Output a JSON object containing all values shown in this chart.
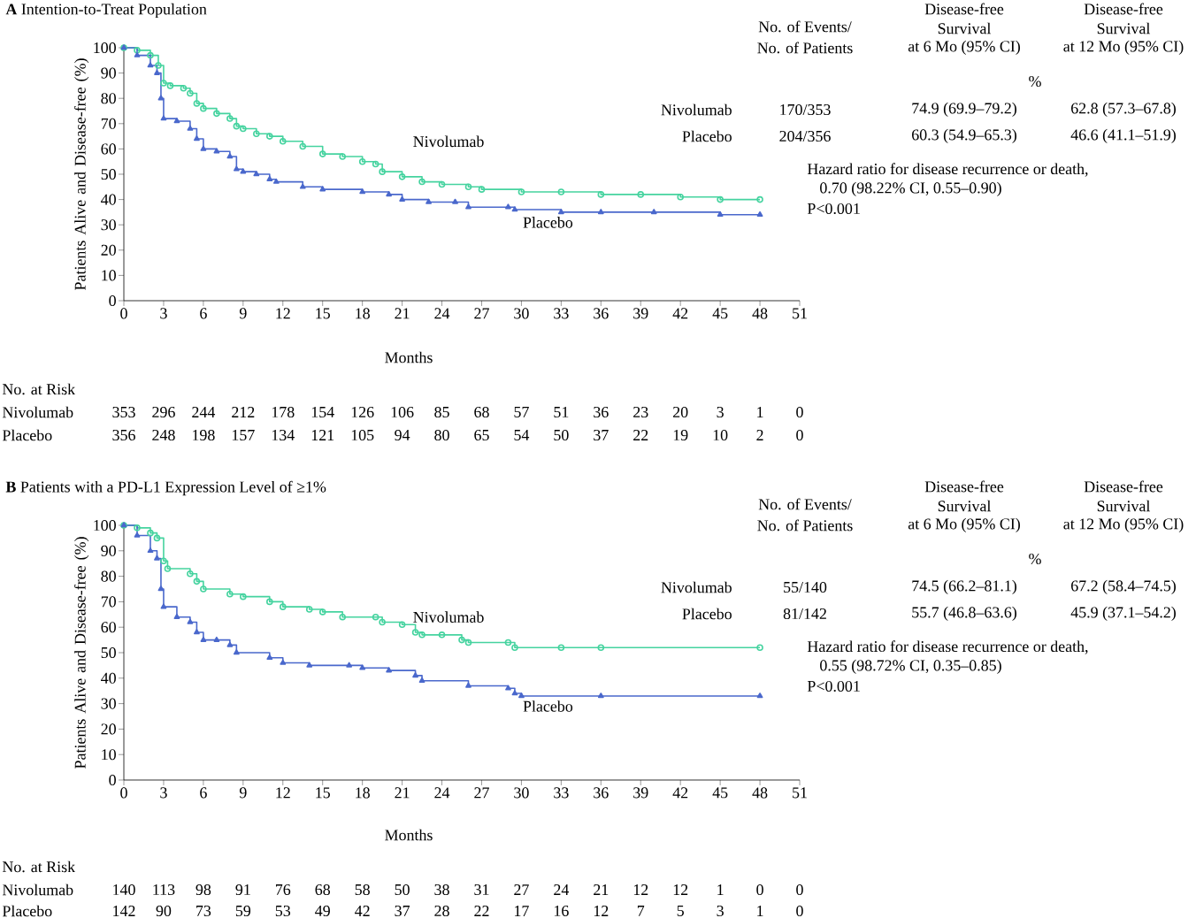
{
  "chart_data": [
    {
      "type": "step",
      "title": "**A** Intention-to-Treat Population",
      "xlabel": "Months",
      "ylabel": "Patients Alive and Disease-free (%)",
      "xlim": [
        0,
        51
      ],
      "ylim": [
        0,
        100
      ],
      "xticks": [
        0,
        3,
        6,
        9,
        12,
        15,
        18,
        21,
        24,
        27,
        30,
        33,
        36,
        39,
        42,
        45,
        48,
        51
      ],
      "yticks": [
        0,
        10,
        20,
        30,
        40,
        50,
        60,
        70,
        80,
        90,
        100
      ],
      "series": [
        {
          "name": "Nivolumab",
          "color": "#45d39f",
          "marker": "circle",
          "x": [
            0,
            1,
            2,
            2.6,
            3,
            3.5,
            4.5,
            5,
            5.5,
            6,
            7,
            8,
            8.5,
            9,
            10,
            11,
            12,
            13.5,
            15,
            16.5,
            18,
            19,
            19.5,
            21,
            22.5,
            24,
            26,
            27,
            30,
            33,
            36,
            39,
            42,
            45,
            48
          ],
          "values": [
            100,
            99,
            97,
            93,
            86,
            85,
            84,
            82,
            78,
            76,
            74,
            72,
            69,
            68,
            66,
            65,
            63,
            61,
            58,
            57,
            55,
            54,
            51,
            49,
            47,
            46,
            45,
            44,
            43,
            43,
            42,
            42,
            41,
            40,
            40
          ]
        },
        {
          "name": "Placebo",
          "color": "#4a68cc",
          "marker": "triangle",
          "x": [
            0,
            1,
            2,
            2.5,
            2.8,
            3,
            4,
            5,
            5.5,
            6,
            7,
            8,
            8.5,
            9,
            10,
            11,
            11.5,
            13.5,
            15,
            18,
            20,
            21,
            23,
            25,
            26,
            29,
            29.5,
            33,
            36,
            40,
            45,
            48
          ],
          "values": [
            100,
            97,
            93,
            90,
            80,
            72,
            71,
            68,
            64,
            60,
            59,
            57,
            52,
            51,
            50,
            48,
            47,
            45,
            44,
            43,
            42,
            40,
            39,
            39,
            37,
            37,
            36,
            35,
            35,
            35,
            34,
            34
          ]
        }
      ],
      "annotations": [
        "No. at Risk",
        "Nivolumab",
        "Placebo",
        "353",
        "296",
        "244",
        "212",
        "178",
        "154",
        "126",
        "106",
        "85",
        "68",
        "57",
        "51",
        "36",
        "23",
        "20",
        "3",
        "1",
        "0",
        "356",
        "248",
        "198",
        "157",
        "134",
        "121",
        "105",
        "94",
        "80",
        "65",
        "54",
        "50",
        "37",
        "22",
        "19",
        "10",
        "2",
        "0",
        "No. of Events/",
        "No. of Patients",
        "Disease-free",
        "Survival",
        "at 6 Mo (95% CI)",
        "Disease-free",
        "Survival",
        "at 12 Mo (95% CI)",
        "%",
        "Nivolumab",
        "170/353",
        "74.9 (69.9–79.2)",
        "62.8 (57.3–67.8)",
        "Placebo",
        "204/356",
        "60.3 (54.9–65.3)",
        "46.6 (41.1–51.9)",
        "Hazard ratio for disease recurrence or death,",
        "0.70 (98.22% CI, 0.55–0.90)",
        "P<0.001"
      ]
    },
    {
      "type": "step",
      "title": "**B** Patients with a PD-L1 Expression Level of ≥1%",
      "xlabel": "Months",
      "ylabel": "Patients Alive and Disease-free (%)",
      "xlim": [
        0,
        51
      ],
      "ylim": [
        0,
        100
      ],
      "xticks": [
        0,
        3,
        6,
        9,
        12,
        15,
        18,
        21,
        24,
        27,
        30,
        33,
        36,
        39,
        42,
        45,
        48,
        51
      ],
      "yticks": [
        0,
        10,
        20,
        30,
        40,
        50,
        60,
        70,
        80,
        90,
        100
      ],
      "series": [
        {
          "name": "Nivolumab",
          "color": "#45d39f",
          "marker": "circle",
          "x": [
            0,
            1,
            2,
            2.5,
            3,
            3.3,
            5,
            5.5,
            6,
            8,
            9,
            11,
            12,
            14,
            15,
            16.5,
            19,
            19.5,
            21,
            22,
            22.5,
            24,
            25.5,
            26,
            29,
            29.5,
            33,
            36,
            48
          ],
          "values": [
            100,
            99,
            97,
            95,
            86,
            83,
            81,
            78,
            75,
            73,
            72,
            70,
            68,
            67,
            66,
            64,
            64,
            62,
            61,
            58,
            57,
            57,
            55,
            54,
            54,
            52,
            52,
            52,
            52
          ]
        },
        {
          "name": "Placebo",
          "color": "#4a68cc",
          "marker": "triangle",
          "x": [
            0,
            1,
            2,
            2.5,
            2.8,
            3,
            4,
            5,
            5.5,
            6,
            7,
            8,
            8.5,
            11,
            12,
            14,
            17,
            18,
            20,
            22,
            22.5,
            26,
            29,
            29.5,
            30,
            36,
            48
          ],
          "values": [
            100,
            96,
            90,
            87,
            75,
            68,
            64,
            62,
            58,
            55,
            55,
            53,
            50,
            48,
            46,
            45,
            45,
            44,
            43,
            41,
            39,
            37,
            36,
            34,
            33,
            33,
            33
          ]
        }
      ],
      "annotations": [
        "No. at Risk",
        "Nivolumab",
        "Placebo",
        "140",
        "113",
        "98",
        "91",
        "76",
        "68",
        "58",
        "50",
        "38",
        "31",
        "27",
        "24",
        "21",
        "12",
        "12",
        "1",
        "0",
        "0",
        "142",
        "90",
        "73",
        "59",
        "53",
        "49",
        "42",
        "37",
        "28",
        "22",
        "17",
        "16",
        "12",
        "7",
        "5",
        "3",
        "1",
        "0",
        "No. of Events/",
        "No. of Patients",
        "Disease-free",
        "Survival",
        "at 6 Mo (95% CI)",
        "Disease-free",
        "Survival",
        "at 12 Mo (95% CI)",
        "%",
        "Nivolumab",
        "55/140",
        "74.5 (66.2–81.1)",
        "67.2 (58.4–74.5)",
        "Placebo",
        "81/142",
        "55.7 (46.8–63.6)",
        "45.9 (37.1–54.2)",
        "Hazard ratio for disease recurrence or death,",
        "0.55 (98.72% CI, 0.35–0.85)",
        "P<0.001"
      ]
    }
  ]
}
